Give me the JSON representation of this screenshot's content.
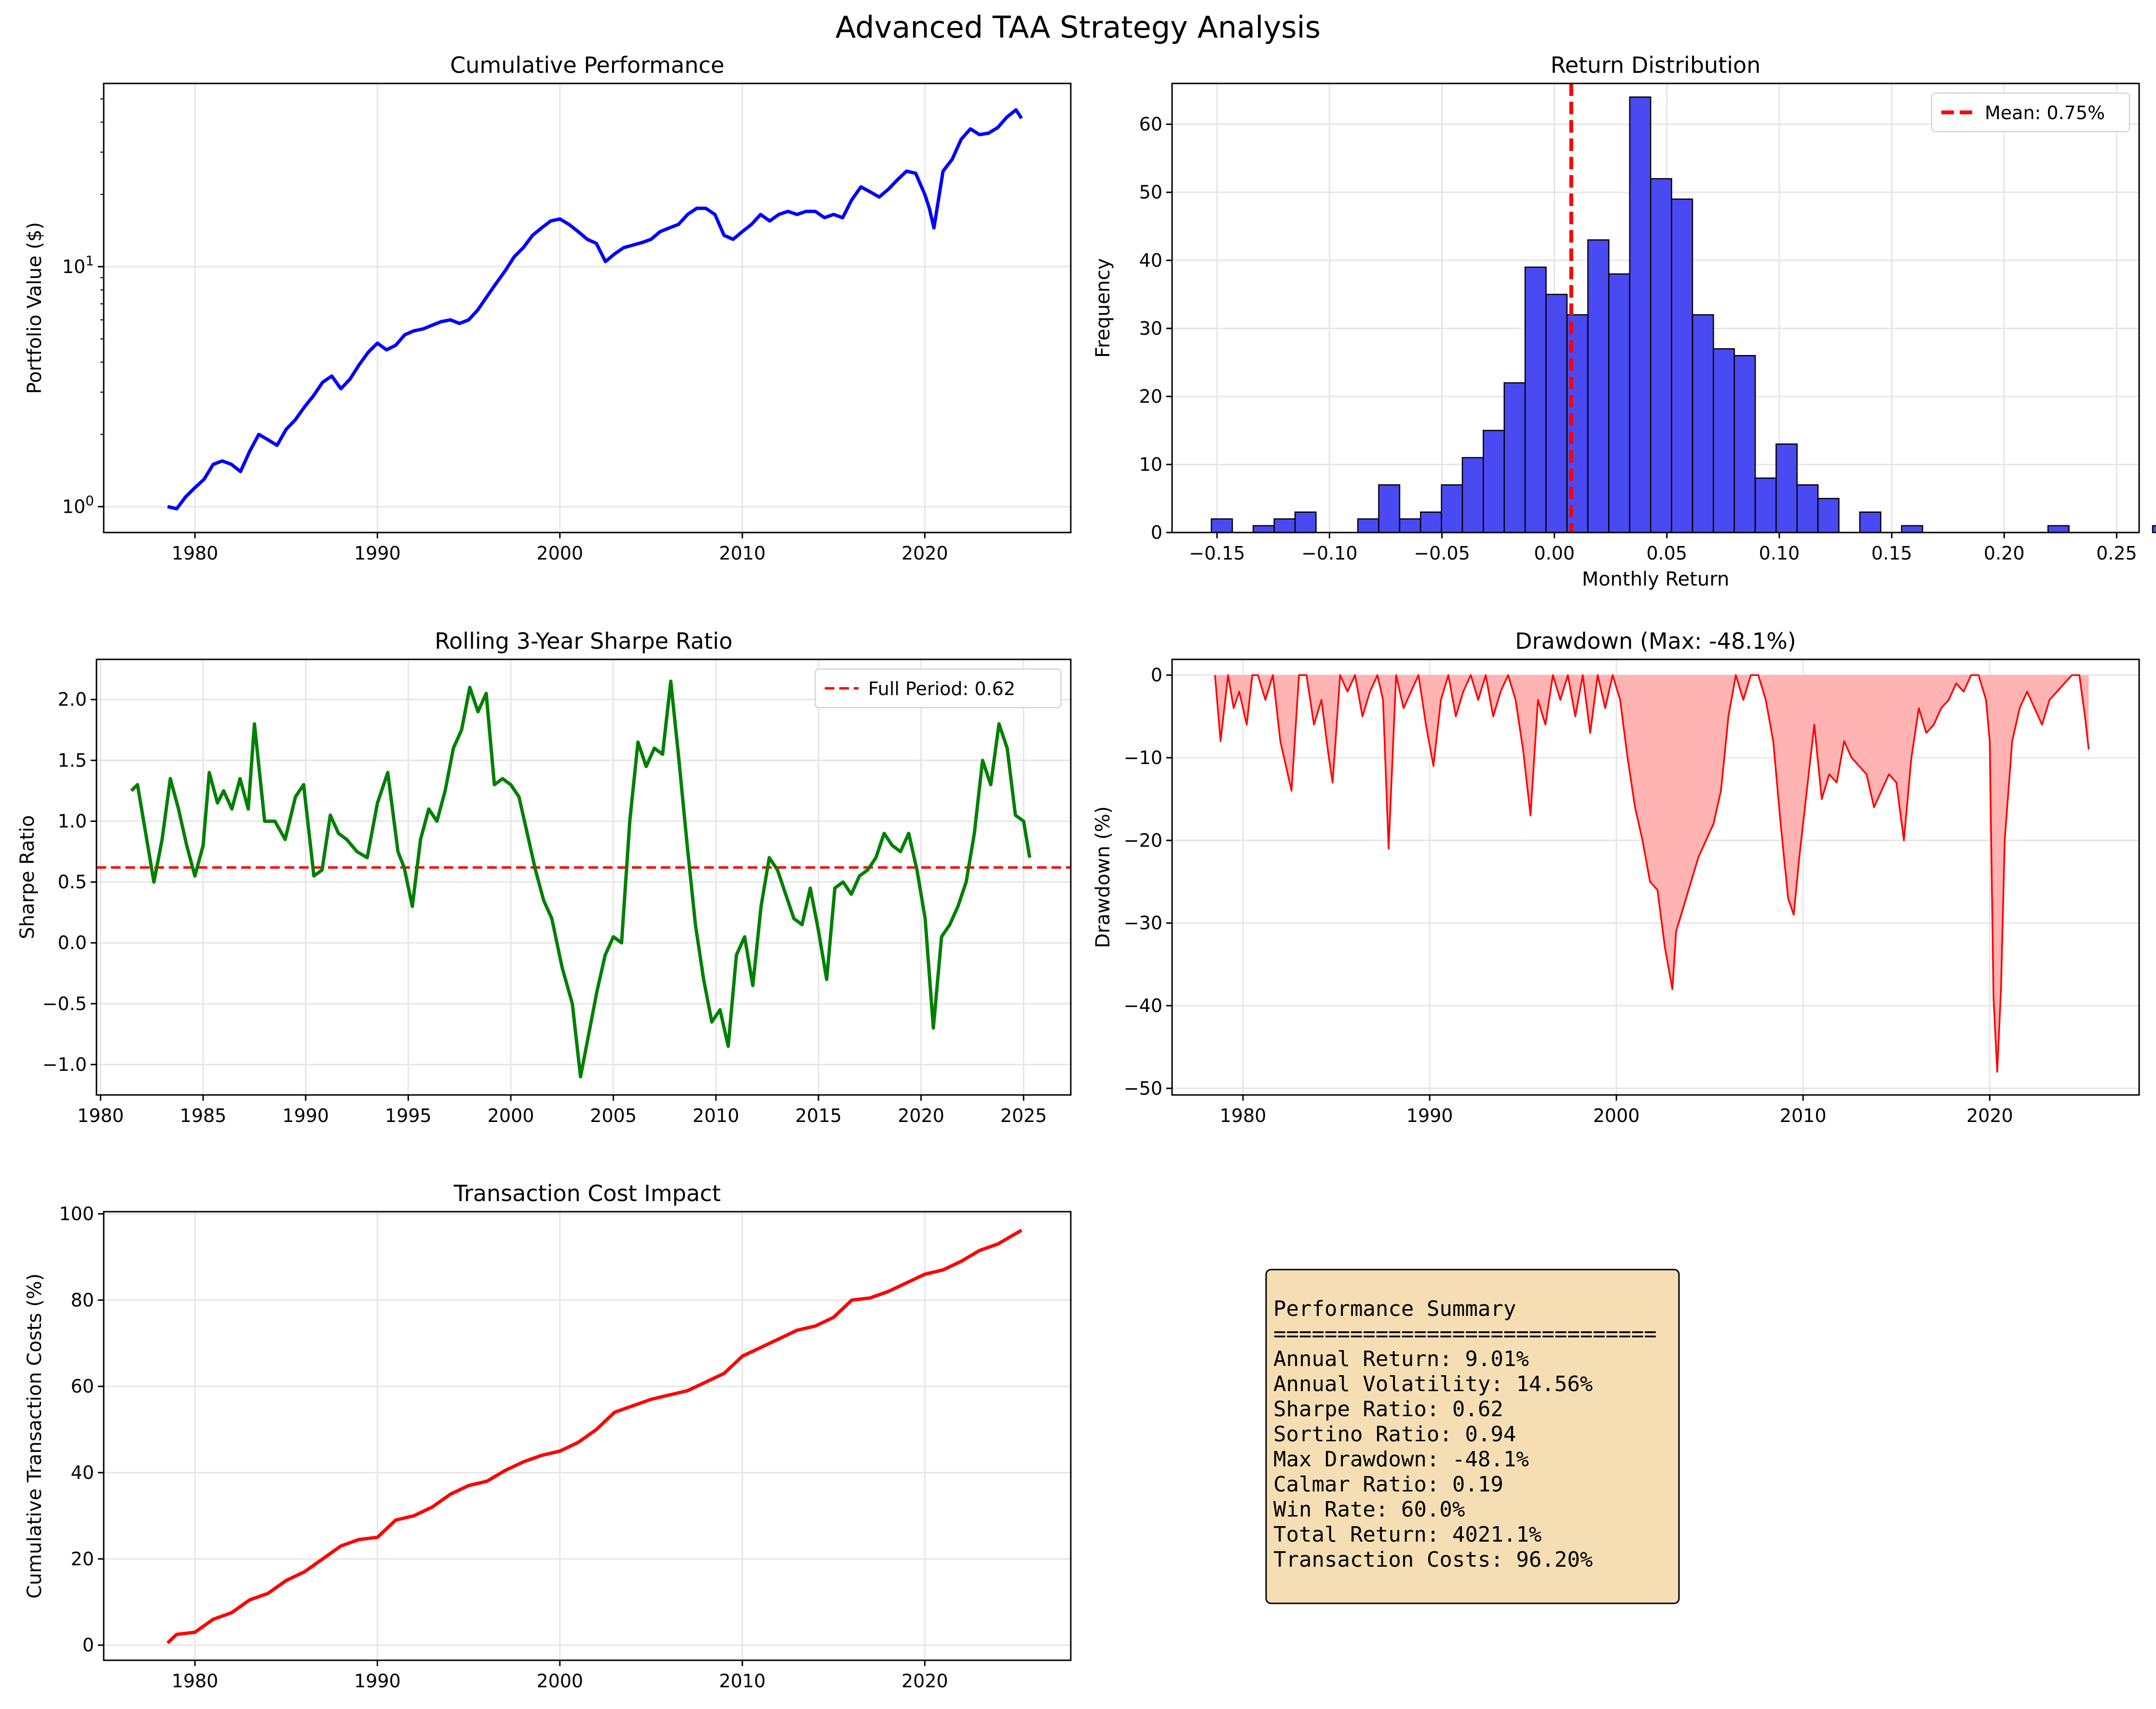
{
  "figure_title": "Advanced TAA Strategy Analysis",
  "colors": {
    "perf": "#0000ff",
    "sharpe": "#008000",
    "refline": "#ff0000",
    "hist_fill": "#4a4af2",
    "dd_line": "#ff0000",
    "dd_fill": "#ffb3b3",
    "cost": "#ff0000",
    "box_fill": "#f5deb3"
  },
  "chart_data": [
    {
      "id": "perf",
      "type": "line",
      "title": "Cumulative Performance",
      "xlabel": "",
      "ylabel": "Portfolio Value ($)",
      "xlim": [
        1975.0,
        2028.0
      ],
      "ylim": [
        0.78,
        58
      ],
      "yscale": "log",
      "grid": true,
      "xticks": [
        1980,
        1990,
        2000,
        2010,
        2020
      ],
      "xtick_labels": [
        "1980",
        "1990",
        "2000",
        "2010",
        "2020"
      ],
      "yticks": [
        1,
        10
      ],
      "series": [
        {
          "color": "#0000ff",
          "x": [
            1978.5,
            1979,
            1979.5,
            1980,
            1980.5,
            1981,
            1981.5,
            1982,
            1982.5,
            1983,
            1983.5,
            1984,
            1984.5,
            1985,
            1985.5,
            1986,
            1986.5,
            1987,
            1987.5,
            1988,
            1988.5,
            1989,
            1989.5,
            1990,
            1990.5,
            1991,
            1991.5,
            1992,
            1992.5,
            1993,
            1993.5,
            1994,
            1994.5,
            1995,
            1995.5,
            1996,
            1996.5,
            1997,
            1997.5,
            1998,
            1998.5,
            1999,
            1999.5,
            2000,
            2000.5,
            2001,
            2001.5,
            2002,
            2002.5,
            2003,
            2003.5,
            2004,
            2004.5,
            2005,
            2005.5,
            2006,
            2006.5,
            2007,
            2007.5,
            2008,
            2008.5,
            2009,
            2009.5,
            2010,
            2010.5,
            2011,
            2011.5,
            2012,
            2012.5,
            2013,
            2013.5,
            2014,
            2014.5,
            2015,
            2015.5,
            2016,
            2016.5,
            2017,
            2017.5,
            2018,
            2018.5,
            2019,
            2019.5,
            2020,
            2020.25,
            2020.5,
            2021,
            2021.5,
            2022,
            2022.5,
            2023,
            2023.5,
            2024,
            2024.5,
            2025,
            2025.3
          ],
          "y": [
            1.0,
            0.98,
            1.1,
            1.2,
            1.3,
            1.5,
            1.55,
            1.5,
            1.4,
            1.7,
            2.0,
            1.9,
            1.8,
            2.1,
            2.3,
            2.6,
            2.9,
            3.3,
            3.5,
            3.1,
            3.4,
            3.9,
            4.4,
            4.8,
            4.5,
            4.7,
            5.2,
            5.4,
            5.5,
            5.7,
            5.9,
            6.0,
            5.8,
            6.0,
            6.6,
            7.5,
            8.5,
            9.6,
            11.0,
            12.0,
            13.5,
            14.5,
            15.5,
            15.8,
            15.0,
            14.0,
            13.0,
            12.5,
            10.5,
            11.3,
            12.0,
            12.3,
            12.6,
            13.0,
            14.0,
            14.5,
            15.0,
            16.5,
            17.5,
            17.5,
            16.5,
            13.5,
            13.0,
            14.0,
            15.0,
            16.5,
            15.5,
            16.5,
            17.0,
            16.5,
            17.0,
            17.0,
            16.0,
            16.5,
            16.0,
            19.0,
            21.5,
            20.5,
            19.5,
            21.0,
            23.0,
            25.0,
            24.5,
            20.0,
            17.5,
            14.5,
            25.0,
            28.0,
            34.0,
            37.5,
            35.5,
            36.0,
            38.0,
            42.0,
            45.0,
            41.5
          ]
        }
      ]
    },
    {
      "id": "hist",
      "type": "bar",
      "title": "Return Distribution",
      "xlabel": "Monthly Return",
      "ylabel": "Frequency",
      "xlim": [
        -0.17,
        0.26
      ],
      "ylim": [
        0,
        66
      ],
      "grid": true,
      "xticks": [
        -0.15,
        -0.1,
        -0.05,
        0.0,
        0.05,
        0.1,
        0.15,
        0.2,
        0.25
      ],
      "xtick_labels": [
        "−0.15",
        "−0.10",
        "−0.05",
        "0.00",
        "0.05",
        "0.10",
        "0.15",
        "0.20",
        "0.25"
      ],
      "yticks": [
        0,
        10,
        20,
        30,
        40,
        50,
        60
      ],
      "bin_start": -0.1525,
      "bin_width": 0.0093,
      "values": [
        2,
        0,
        1,
        2,
        3,
        0,
        0,
        2,
        7,
        2,
        3,
        7,
        11,
        15,
        22,
        39,
        35,
        32,
        43,
        38,
        64,
        52,
        49,
        32,
        27,
        26,
        8,
        13,
        7,
        5,
        0,
        3,
        0,
        1,
        0,
        0,
        0,
        0,
        0,
        0,
        1,
        0,
        0,
        0,
        0,
        1,
        1
      ],
      "mean_line": {
        "x": 0.0075,
        "label": "Mean: 0.75%"
      },
      "legend_position": "upper right"
    },
    {
      "id": "sharpe",
      "type": "line",
      "title": "Rolling 3-Year Sharpe Ratio",
      "xlabel": "",
      "ylabel": "Sharpe Ratio",
      "xlim": [
        1979.8,
        2027.3
      ],
      "ylim": [
        -1.25,
        2.33
      ],
      "grid": true,
      "xticks": [
        1980,
        1985,
        1990,
        1995,
        2000,
        2005,
        2010,
        2015,
        2020,
        2025
      ],
      "xtick_labels": [
        "1980",
        "1985",
        "1990",
        "1995",
        "2000",
        "2005",
        "2010",
        "2015",
        "2020",
        "2025"
      ],
      "yticks": [
        -1.0,
        -0.5,
        0.0,
        0.5,
        1.0,
        1.5,
        2.0
      ],
      "ytick_labels": [
        "−1.0",
        "−0.5",
        "0.0",
        "0.5",
        "1.0",
        "1.5",
        "2.0"
      ],
      "reference_line": {
        "y": 0.62,
        "label": "Full Period: 0.62"
      },
      "legend_position": "upper right",
      "series": [
        {
          "color": "#008000",
          "x": [
            1981.5,
            1981.8,
            1982.2,
            1982.6,
            1983,
            1983.4,
            1983.8,
            1984.2,
            1984.6,
            1985,
            1985.3,
            1985.7,
            1986,
            1986.4,
            1986.8,
            1987.2,
            1987.5,
            1988,
            1988.5,
            1989,
            1989.5,
            1989.9,
            1990.4,
            1990.8,
            1991.2,
            1991.6,
            1992,
            1992.5,
            1993,
            1993.5,
            1994,
            1994.5,
            1994.8,
            1995.2,
            1995.6,
            1996,
            1996.4,
            1996.8,
            1997.2,
            1997.6,
            1998,
            1998.4,
            1998.8,
            1999.2,
            1999.6,
            2000,
            2000.4,
            2000.8,
            2001.2,
            2001.6,
            2002,
            2002.5,
            2003,
            2003.4,
            2003.8,
            2004.2,
            2004.6,
            2005,
            2005.4,
            2005.8,
            2006.2,
            2006.6,
            2007,
            2007.4,
            2007.8,
            2008.2,
            2008.6,
            2009,
            2009.4,
            2009.8,
            2010.2,
            2010.6,
            2011,
            2011.4,
            2011.8,
            2012.2,
            2012.6,
            2013,
            2013.4,
            2013.8,
            2014.2,
            2014.6,
            2015,
            2015.4,
            2015.8,
            2016.2,
            2016.6,
            2017,
            2017.4,
            2017.8,
            2018.2,
            2018.6,
            2019,
            2019.4,
            2019.8,
            2020.2,
            2020.6,
            2021,
            2021.4,
            2021.8,
            2022.2,
            2022.6,
            2023,
            2023.4,
            2023.8,
            2024.2,
            2024.6,
            2025,
            2025.3
          ],
          "y": [
            1.25,
            1.3,
            0.9,
            0.5,
            0.85,
            1.35,
            1.1,
            0.8,
            0.55,
            0.8,
            1.4,
            1.15,
            1.25,
            1.1,
            1.35,
            1.1,
            1.8,
            1.0,
            1.0,
            0.85,
            1.2,
            1.3,
            0.55,
            0.6,
            1.05,
            0.9,
            0.85,
            0.75,
            0.7,
            1.15,
            1.4,
            0.75,
            0.62,
            0.3,
            0.85,
            1.1,
            1.0,
            1.25,
            1.6,
            1.75,
            2.1,
            1.9,
            2.05,
            1.3,
            1.35,
            1.3,
            1.2,
            0.9,
            0.6,
            0.35,
            0.2,
            -0.2,
            -0.5,
            -1.1,
            -0.75,
            -0.4,
            -0.1,
            0.05,
            0.0,
            1.0,
            1.65,
            1.45,
            1.6,
            1.55,
            2.15,
            1.5,
            0.8,
            0.15,
            -0.3,
            -0.65,
            -0.55,
            -0.85,
            -0.1,
            0.05,
            -0.35,
            0.3,
            0.7,
            0.6,
            0.4,
            0.2,
            0.15,
            0.45,
            0.1,
            -0.3,
            0.45,
            0.5,
            0.4,
            0.55,
            0.6,
            0.7,
            0.9,
            0.8,
            0.75,
            0.9,
            0.6,
            0.2,
            -0.7,
            0.05,
            0.15,
            0.3,
            0.5,
            0.9,
            1.5,
            1.3,
            1.8,
            1.6,
            1.05,
            1.0,
            0.7
          ]
        }
      ]
    },
    {
      "id": "drawdown",
      "type": "area",
      "title": "Drawdown (Max: -48.1%)",
      "xlabel": "",
      "ylabel": "Drawdown (%)",
      "xlim": [
        1976.2,
        2028.0
      ],
      "ylim": [
        -50.8,
        1.9
      ],
      "grid": true,
      "xticks": [
        1980,
        1990,
        2000,
        2010,
        2020
      ],
      "xtick_labels": [
        "1980",
        "1990",
        "2000",
        "2010",
        "2020"
      ],
      "yticks": [
        0,
        -10,
        -20,
        -30,
        -40,
        -50
      ],
      "ytick_labels": [
        "0",
        "−10",
        "−20",
        "−30",
        "−40",
        "−50"
      ],
      "series": [
        {
          "color": "#ff0000",
          "x": [
            1978.5,
            1978.8,
            1979.2,
            1979.5,
            1979.8,
            1980.2,
            1980.5,
            1980.8,
            1981.2,
            1981.6,
            1982,
            1982.4,
            1982.6,
            1983,
            1983.4,
            1983.8,
            1984.2,
            1984.6,
            1984.8,
            1985.2,
            1985.6,
            1986,
            1986.4,
            1986.8,
            1987.2,
            1987.5,
            1987.8,
            1988.2,
            1988.6,
            1989,
            1989.4,
            1989.8,
            1990.2,
            1990.6,
            1991,
            1991.4,
            1991.8,
            1992.2,
            1992.6,
            1993,
            1993.4,
            1993.8,
            1994.2,
            1994.6,
            1995,
            1995.4,
            1995.8,
            1996.2,
            1996.6,
            1997,
            1997.4,
            1997.8,
            1998.2,
            1998.6,
            1999,
            1999.4,
            1999.8,
            2000.2,
            2000.6,
            2001,
            2001.4,
            2001.8,
            2002.2,
            2002.6,
            2003,
            2003.2,
            2003.6,
            2004,
            2004.4,
            2004.8,
            2005.2,
            2005.6,
            2006,
            2006.4,
            2006.8,
            2007.2,
            2007.6,
            2008,
            2008.4,
            2008.8,
            2009.2,
            2009.5,
            2009.8,
            2010.2,
            2010.6,
            2011,
            2011.4,
            2011.8,
            2012.2,
            2012.6,
            2013,
            2013.4,
            2013.8,
            2014.2,
            2014.6,
            2015,
            2015.4,
            2015.8,
            2016.2,
            2016.6,
            2017,
            2017.4,
            2017.8,
            2018.2,
            2018.6,
            2019,
            2019.4,
            2019.8,
            2020.0,
            2020.2,
            2020.4,
            2020.6,
            2020.8,
            2021.2,
            2021.6,
            2022,
            2022.4,
            2022.8,
            2023.2,
            2023.6,
            2024,
            2024.4,
            2024.8,
            2025.1,
            2025.3
          ],
          "y": [
            0,
            -8,
            0,
            -4,
            -2,
            -6,
            0,
            0,
            -3,
            0,
            -8,
            -12,
            -14,
            0,
            0,
            -6,
            -3,
            -10,
            -13,
            0,
            -2,
            0,
            -5,
            -2,
            0,
            -3,
            -21,
            0,
            -4,
            -2,
            0,
            -6,
            -11,
            -3,
            0,
            -5,
            -2,
            0,
            -3,
            0,
            -5,
            -2,
            0,
            -3,
            -9,
            -17,
            -3,
            -6,
            0,
            -3,
            0,
            -5,
            0,
            -7,
            0,
            -4,
            0,
            -3,
            -10,
            -16,
            -20,
            -25,
            -26,
            -33,
            -38,
            -31,
            -28,
            -25,
            -22,
            -20,
            -18,
            -14,
            -5,
            0,
            -3,
            0,
            0,
            -3,
            -8,
            -18,
            -27,
            -29,
            -22,
            -14,
            -6,
            -15,
            -12,
            -13,
            -8,
            -10,
            -11,
            -12,
            -16,
            -14,
            -12,
            -13,
            -20,
            -10,
            -4,
            -7,
            -6,
            -4,
            -3,
            -1,
            -2,
            0,
            0,
            -3,
            -8,
            -39,
            -48,
            -38,
            -20,
            -8,
            -4,
            -2,
            -4,
            -6,
            -3,
            -2,
            -1,
            0,
            0,
            -5,
            -9
          ]
        }
      ]
    },
    {
      "id": "cost",
      "type": "line",
      "title": "Transaction Cost Impact",
      "xlabel": "",
      "ylabel": "Cumulative Transaction Costs (%)",
      "xlim": [
        1975.0,
        2028.0
      ],
      "ylim": [
        -3.5,
        100.5
      ],
      "grid": true,
      "xticks": [
        1980,
        1990,
        2000,
        2010,
        2020
      ],
      "xtick_labels": [
        "1980",
        "1990",
        "2000",
        "2010",
        "2020"
      ],
      "yticks": [
        0,
        20,
        40,
        60,
        80,
        100
      ],
      "series": [
        {
          "color": "#ff0000",
          "x": [
            1978.5,
            1979,
            1980,
            1981,
            1982,
            1983,
            1984,
            1985,
            1986,
            1987,
            1988,
            1989,
            1990,
            1991,
            1992,
            1993,
            1994,
            1995,
            1996,
            1997,
            1998,
            1999,
            2000,
            2001,
            2002,
            2003,
            2004,
            2005,
            2006,
            2007,
            2008,
            2009,
            2010,
            2011,
            2012,
            2013,
            2014,
            2015,
            2016,
            2017,
            2018,
            2019,
            2020,
            2021,
            2022,
            2023,
            2024,
            2025.3
          ],
          "y": [
            0.5,
            2.5,
            3,
            6,
            7.5,
            10.5,
            12,
            15,
            17,
            20,
            23,
            24.5,
            25,
            29,
            30,
            32,
            35,
            37,
            38,
            40.5,
            42.5,
            44,
            45,
            47,
            50,
            54,
            55.5,
            57,
            58,
            59,
            61,
            63,
            67,
            69,
            71,
            73,
            74,
            76,
            80,
            80.5,
            82,
            84,
            86,
            87,
            89,
            91.5,
            93,
            96.2
          ]
        }
      ]
    }
  ],
  "summary": {
    "title": "Performance Summary",
    "separator": "==============================",
    "lines": [
      "Annual Return: 9.01%",
      "Annual Volatility: 14.56%",
      "Sharpe Ratio: 0.62",
      "Sortino Ratio: 0.94",
      "Max Drawdown: -48.1%",
      "Calmar Ratio: 0.19",
      "Win Rate: 60.0%",
      "Total Return: 4021.1%",
      "Transaction Costs: 96.20%"
    ]
  }
}
